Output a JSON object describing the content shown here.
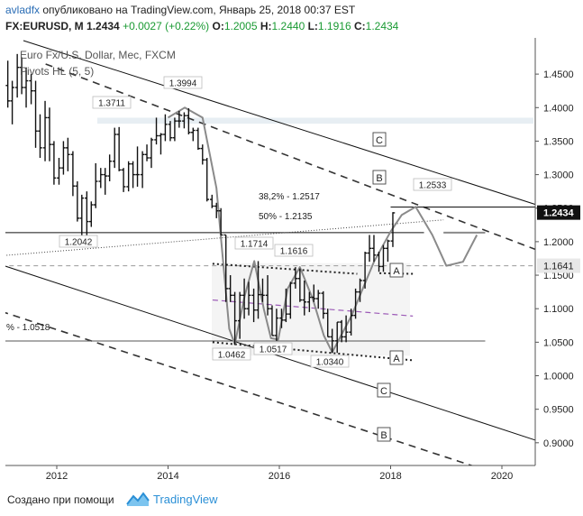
{
  "header": {
    "author": "avladfx",
    "published": "опубликовано на TradingView.com, Январь 25, 2018 00:37 EST",
    "symbol": "FX:EURUSD, M",
    "last": "1.2434",
    "change": "+0.0027 (+0.22%)",
    "o_label": "O:",
    "o_value": "1.2005",
    "h_label": "H:",
    "h_value": "1.2440",
    "l_label": "L:",
    "l_value": "1.1916",
    "c_label": "C:",
    "c_value": "1.2434"
  },
  "legend": {
    "instrument": "Euro Fx/U.S. Dollar, Мес, FXCM",
    "indicator": "Pivots HL (5, 5)"
  },
  "footer": {
    "created_with": "Создано при помощи",
    "brand": "TradingView"
  },
  "colors": {
    "bar": "#111111",
    "wave": "#8a8a8a",
    "median": "#9b59b6",
    "channel": "#111111",
    "price_tag_bg": "#111111",
    "price_tag_fg": "#ffffff",
    "level_tag_bg": "#e8e8e8"
  },
  "chart_data": {
    "type": "ohlc",
    "x_axis": {
      "ticks": [
        "2012",
        "2014",
        "2016",
        "2018",
        "2020"
      ]
    },
    "y_axis": {
      "ylim": [
        0.8661,
        1.504
      ],
      "ticks": [
        "1.4500",
        "1.4000",
        "1.3500",
        "1.3000",
        "1.2500",
        "1.2000",
        "1.1500",
        "1.1000",
        "1.0500",
        "1.0000",
        "0.9500",
        "0.9000"
      ]
    },
    "price_tags": [
      {
        "value": 1.2434,
        "label": "1.2434",
        "style": "dark"
      },
      {
        "value": 1.1641,
        "label": "1.1641",
        "style": "light"
      }
    ],
    "pivot_labels": [
      {
        "date": 2014.3,
        "value": 1.3994,
        "label": "1.3994"
      },
      {
        "date": 2011.6,
        "value": 1.3711,
        "label": "1.3711"
      },
      {
        "date": 2012.5,
        "value": 1.2042,
        "label": "1.2042"
      },
      {
        "date": 2015.6,
        "value": 1.1714,
        "label": "1.1714"
      },
      {
        "date": 2016.4,
        "value": 1.1616,
        "label": "1.1616"
      },
      {
        "date": 2015.1,
        "value": 1.0462,
        "label": "1.0462"
      },
      {
        "date": 2015.9,
        "value": 1.0517,
        "label": "1.0517"
      },
      {
        "date": 2016.9,
        "value": 1.034,
        "label": "1.0340"
      },
      {
        "date": 2018.4,
        "value": 1.2533,
        "label": "1.2533"
      }
    ],
    "fib_labels": [
      {
        "value": 1.2517,
        "label": "38,2% - 1.2517"
      },
      {
        "value": 1.2135,
        "label": "50% - 1.2135"
      },
      {
        "value": 1.0518,
        "label": "% - 1.0518"
      }
    ],
    "channel_labels": [
      "C",
      "B",
      "A",
      "A",
      "C",
      "B"
    ],
    "ohlc": [
      {
        "d": 2011.12,
        "o": 1.433,
        "h": 1.47,
        "l": 1.4,
        "c": 1.41
      },
      {
        "d": 2011.2,
        "o": 1.41,
        "h": 1.44,
        "l": 1.375,
        "c": 1.43
      },
      {
        "d": 2011.29,
        "o": 1.43,
        "h": 1.48,
        "l": 1.415,
        "c": 1.46
      },
      {
        "d": 2011.37,
        "o": 1.46,
        "h": 1.475,
        "l": 1.42,
        "c": 1.43
      },
      {
        "d": 2011.45,
        "o": 1.43,
        "h": 1.46,
        "l": 1.4,
        "c": 1.44
      },
      {
        "d": 2011.54,
        "o": 1.44,
        "h": 1.45,
        "l": 1.405,
        "c": 1.425
      },
      {
        "d": 2011.62,
        "o": 1.425,
        "h": 1.44,
        "l": 1.34,
        "c": 1.365
      },
      {
        "d": 2011.7,
        "o": 1.365,
        "h": 1.39,
        "l": 1.325,
        "c": 1.34
      },
      {
        "d": 2011.79,
        "o": 1.34,
        "h": 1.41,
        "l": 1.32,
        "c": 1.385
      },
      {
        "d": 2011.87,
        "o": 1.385,
        "h": 1.4,
        "l": 1.32,
        "c": 1.345
      },
      {
        "d": 2011.95,
        "o": 1.345,
        "h": 1.35,
        "l": 1.285,
        "c": 1.295
      },
      {
        "d": 2012.04,
        "o": 1.295,
        "h": 1.325,
        "l": 1.285,
        "c": 1.31
      },
      {
        "d": 2012.12,
        "o": 1.31,
        "h": 1.35,
        "l": 1.3,
        "c": 1.34
      },
      {
        "d": 2012.2,
        "o": 1.34,
        "h": 1.355,
        "l": 1.305,
        "c": 1.33
      },
      {
        "d": 2012.29,
        "o": 1.33,
        "h": 1.335,
        "l": 1.268,
        "c": 1.283
      },
      {
        "d": 2012.37,
        "o": 1.283,
        "h": 1.29,
        "l": 1.23,
        "c": 1.235
      },
      {
        "d": 2012.45,
        "o": 1.235,
        "h": 1.27,
        "l": 1.205,
        "c": 1.265
      },
      {
        "d": 2012.54,
        "o": 1.265,
        "h": 1.275,
        "l": 1.204,
        "c": 1.23
      },
      {
        "d": 2012.62,
        "o": 1.23,
        "h": 1.26,
        "l": 1.222,
        "c": 1.255
      },
      {
        "d": 2012.7,
        "o": 1.255,
        "h": 1.317,
        "l": 1.25,
        "c": 1.29
      },
      {
        "d": 2012.79,
        "o": 1.29,
        "h": 1.31,
        "l": 1.28,
        "c": 1.3
      },
      {
        "d": 2012.87,
        "o": 1.3,
        "h": 1.31,
        "l": 1.27,
        "c": 1.298
      },
      {
        "d": 2012.95,
        "o": 1.298,
        "h": 1.33,
        "l": 1.29,
        "c": 1.32
      },
      {
        "d": 2013.04,
        "o": 1.32,
        "h": 1.37,
        "l": 1.31,
        "c": 1.36
      },
      {
        "d": 2013.12,
        "o": 1.36,
        "h": 1.371,
        "l": 1.305,
        "c": 1.307
      },
      {
        "d": 2013.2,
        "o": 1.307,
        "h": 1.31,
        "l": 1.274,
        "c": 1.282
      },
      {
        "d": 2013.29,
        "o": 1.282,
        "h": 1.32,
        "l": 1.275,
        "c": 1.316
      },
      {
        "d": 2013.37,
        "o": 1.316,
        "h": 1.32,
        "l": 1.28,
        "c": 1.3
      },
      {
        "d": 2013.45,
        "o": 1.3,
        "h": 1.342,
        "l": 1.282,
        "c": 1.3
      },
      {
        "d": 2013.54,
        "o": 1.3,
        "h": 1.335,
        "l": 1.28,
        "c": 1.33
      },
      {
        "d": 2013.62,
        "o": 1.33,
        "h": 1.345,
        "l": 1.32,
        "c": 1.325
      },
      {
        "d": 2013.7,
        "o": 1.325,
        "h": 1.355,
        "l": 1.31,
        "c": 1.352
      },
      {
        "d": 2013.79,
        "o": 1.352,
        "h": 1.385,
        "l": 1.345,
        "c": 1.358
      },
      {
        "d": 2013.87,
        "o": 1.358,
        "h": 1.362,
        "l": 1.33,
        "c": 1.36
      },
      {
        "d": 2013.95,
        "o": 1.36,
        "h": 1.39,
        "l": 1.35,
        "c": 1.375
      },
      {
        "d": 2014.04,
        "o": 1.375,
        "h": 1.38,
        "l": 1.35,
        "c": 1.355
      },
      {
        "d": 2014.12,
        "o": 1.355,
        "h": 1.385,
        "l": 1.35,
        "c": 1.38
      },
      {
        "d": 2014.2,
        "o": 1.38,
        "h": 1.395,
        "l": 1.37,
        "c": 1.38
      },
      {
        "d": 2014.29,
        "o": 1.38,
        "h": 1.393,
        "l": 1.369,
        "c": 1.388
      },
      {
        "d": 2014.37,
        "o": 1.388,
        "h": 1.399,
        "l": 1.36,
        "c": 1.363
      },
      {
        "d": 2014.45,
        "o": 1.363,
        "h": 1.37,
        "l": 1.35,
        "c": 1.366
      },
      {
        "d": 2014.54,
        "o": 1.366,
        "h": 1.37,
        "l": 1.337,
        "c": 1.339
      },
      {
        "d": 2014.62,
        "o": 1.339,
        "h": 1.345,
        "l": 1.315,
        "c": 1.322
      },
      {
        "d": 2014.7,
        "o": 1.322,
        "h": 1.325,
        "l": 1.26,
        "c": 1.263
      },
      {
        "d": 2014.79,
        "o": 1.263,
        "h": 1.27,
        "l": 1.25,
        "c": 1.253
      },
      {
        "d": 2014.87,
        "o": 1.253,
        "h": 1.258,
        "l": 1.235,
        "c": 1.246
      },
      {
        "d": 2014.95,
        "o": 1.246,
        "h": 1.25,
        "l": 1.21,
        "c": 1.21
      },
      {
        "d": 2015.04,
        "o": 1.21,
        "h": 1.21,
        "l": 1.11,
        "c": 1.13
      },
      {
        "d": 2015.12,
        "o": 1.13,
        "h": 1.15,
        "l": 1.11,
        "c": 1.12
      },
      {
        "d": 2015.2,
        "o": 1.12,
        "h": 1.125,
        "l": 1.046,
        "c": 1.082
      },
      {
        "d": 2015.29,
        "o": 1.082,
        "h": 1.125,
        "l": 1.055,
        "c": 1.12
      },
      {
        "d": 2015.37,
        "o": 1.12,
        "h": 1.145,
        "l": 1.085,
        "c": 1.1
      },
      {
        "d": 2015.45,
        "o": 1.1,
        "h": 1.14,
        "l": 1.09,
        "c": 1.12
      },
      {
        "d": 2015.54,
        "o": 1.12,
        "h": 1.13,
        "l": 1.08,
        "c": 1.098
      },
      {
        "d": 2015.62,
        "o": 1.098,
        "h": 1.171,
        "l": 1.085,
        "c": 1.121
      },
      {
        "d": 2015.7,
        "o": 1.121,
        "h": 1.145,
        "l": 1.11,
        "c": 1.12
      },
      {
        "d": 2015.79,
        "o": 1.12,
        "h": 1.15,
        "l": 1.09,
        "c": 1.1
      },
      {
        "d": 2015.87,
        "o": 1.1,
        "h": 1.105,
        "l": 1.06,
        "c": 1.06
      },
      {
        "d": 2015.95,
        "o": 1.06,
        "h": 1.1,
        "l": 1.052,
        "c": 1.086
      },
      {
        "d": 2016.04,
        "o": 1.086,
        "h": 1.1,
        "l": 1.071,
        "c": 1.083
      },
      {
        "d": 2016.12,
        "o": 1.083,
        "h": 1.13,
        "l": 1.08,
        "c": 1.092
      },
      {
        "d": 2016.2,
        "o": 1.092,
        "h": 1.14,
        "l": 1.085,
        "c": 1.138
      },
      {
        "d": 2016.29,
        "o": 1.138,
        "h": 1.162,
        "l": 1.13,
        "c": 1.145
      },
      {
        "d": 2016.37,
        "o": 1.145,
        "h": 1.16,
        "l": 1.11,
        "c": 1.113
      },
      {
        "d": 2016.45,
        "o": 1.113,
        "h": 1.142,
        "l": 1.09,
        "c": 1.11
      },
      {
        "d": 2016.54,
        "o": 1.11,
        "h": 1.125,
        "l": 1.095,
        "c": 1.117
      },
      {
        "d": 2016.62,
        "o": 1.117,
        "h": 1.136,
        "l": 1.11,
        "c": 1.115
      },
      {
        "d": 2016.7,
        "o": 1.115,
        "h": 1.128,
        "l": 1.1,
        "c": 1.123
      },
      {
        "d": 2016.79,
        "o": 1.123,
        "h": 1.126,
        "l": 1.085,
        "c": 1.093
      },
      {
        "d": 2016.87,
        "o": 1.093,
        "h": 1.1,
        "l": 1.058,
        "c": 1.058
      },
      {
        "d": 2016.95,
        "o": 1.058,
        "h": 1.07,
        "l": 1.034,
        "c": 1.052
      },
      {
        "d": 2017.04,
        "o": 1.052,
        "h": 1.08,
        "l": 1.034,
        "c": 1.08
      },
      {
        "d": 2017.12,
        "o": 1.08,
        "h": 1.083,
        "l": 1.05,
        "c": 1.058
      },
      {
        "d": 2017.2,
        "o": 1.058,
        "h": 1.09,
        "l": 1.05,
        "c": 1.065
      },
      {
        "d": 2017.29,
        "o": 1.065,
        "h": 1.1,
        "l": 1.06,
        "c": 1.09
      },
      {
        "d": 2017.37,
        "o": 1.09,
        "h": 1.13,
        "l": 1.085,
        "c": 1.125
      },
      {
        "d": 2017.45,
        "o": 1.125,
        "h": 1.145,
        "l": 1.11,
        "c": 1.142
      },
      {
        "d": 2017.54,
        "o": 1.142,
        "h": 1.185,
        "l": 1.13,
        "c": 1.183
      },
      {
        "d": 2017.62,
        "o": 1.183,
        "h": 1.21,
        "l": 1.17,
        "c": 1.19
      },
      {
        "d": 2017.7,
        "o": 1.19,
        "h": 1.21,
        "l": 1.17,
        "c": 1.18
      },
      {
        "d": 2017.79,
        "o": 1.18,
        "h": 1.185,
        "l": 1.155,
        "c": 1.163
      },
      {
        "d": 2017.87,
        "o": 1.163,
        "h": 1.195,
        "l": 1.155,
        "c": 1.19
      },
      {
        "d": 2017.95,
        "o": 1.19,
        "h": 1.203,
        "l": 1.17,
        "c": 1.201
      },
      {
        "d": 2018.04,
        "o": 1.201,
        "h": 1.244,
        "l": 1.192,
        "c": 1.243
      }
    ]
  }
}
